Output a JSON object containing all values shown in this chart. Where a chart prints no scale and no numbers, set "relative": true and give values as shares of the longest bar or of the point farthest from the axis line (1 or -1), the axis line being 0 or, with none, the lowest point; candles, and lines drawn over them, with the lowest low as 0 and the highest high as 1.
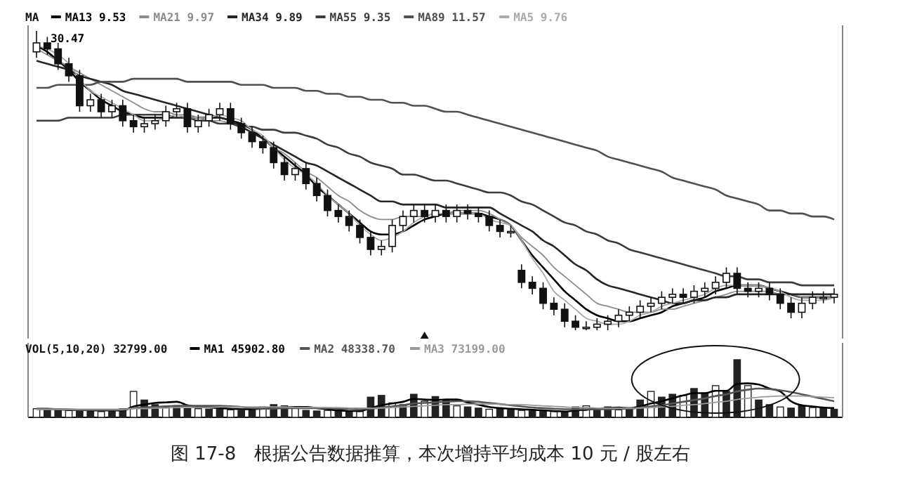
{
  "chart_data": [
    {
      "type": "candlestick",
      "relative": true,
      "legend": "top left",
      "legend_title": "MA",
      "annotations": [
        "30.47"
      ],
      "categories": [
        null,
        null,
        null,
        null,
        null,
        null,
        null,
        null,
        null,
        null,
        null,
        null,
        null,
        null,
        null,
        null,
        null,
        null,
        null,
        null,
        null,
        null,
        null,
        null,
        null,
        null,
        null,
        null,
        null,
        null,
        null,
        null,
        null,
        null,
        null,
        null,
        null,
        null,
        null,
        null,
        null,
        null,
        null,
        null,
        null,
        null,
        null,
        null,
        null,
        null,
        null,
        null,
        null,
        null,
        null,
        null,
        null,
        null,
        null,
        null,
        null,
        null,
        null,
        null,
        null,
        null,
        null,
        null,
        null,
        null,
        null,
        null,
        null,
        null,
        null
      ],
      "color": "#111111",
      "ohlc": [
        [
          0.93,
          1.0,
          0.91,
          0.96
        ],
        [
          0.96,
          0.98,
          0.92,
          0.94
        ],
        [
          0.94,
          0.96,
          0.87,
          0.89
        ],
        [
          0.89,
          0.91,
          0.83,
          0.85
        ],
        [
          0.85,
          0.87,
          0.73,
          0.75
        ],
        [
          0.75,
          0.79,
          0.73,
          0.77
        ],
        [
          0.77,
          0.79,
          0.71,
          0.73
        ],
        [
          0.73,
          0.77,
          0.71,
          0.75
        ],
        [
          0.75,
          0.77,
          0.68,
          0.7
        ],
        [
          0.7,
          0.72,
          0.66,
          0.68
        ],
        [
          0.68,
          0.71,
          0.66,
          0.69
        ],
        [
          0.69,
          0.72,
          0.67,
          0.7
        ],
        [
          0.7,
          0.75,
          0.68,
          0.73
        ],
        [
          0.73,
          0.76,
          0.71,
          0.74
        ],
        [
          0.74,
          0.76,
          0.66,
          0.68
        ],
        [
          0.68,
          0.72,
          0.66,
          0.7
        ],
        [
          0.7,
          0.74,
          0.68,
          0.72
        ],
        [
          0.72,
          0.76,
          0.7,
          0.74
        ],
        [
          0.74,
          0.76,
          0.67,
          0.69
        ],
        [
          0.69,
          0.71,
          0.64,
          0.66
        ],
        [
          0.66,
          0.68,
          0.61,
          0.63
        ],
        [
          0.63,
          0.65,
          0.59,
          0.61
        ],
        [
          0.61,
          0.63,
          0.54,
          0.56
        ],
        [
          0.56,
          0.58,
          0.5,
          0.52
        ],
        [
          0.52,
          0.56,
          0.5,
          0.54
        ],
        [
          0.54,
          0.56,
          0.47,
          0.49
        ],
        [
          0.49,
          0.51,
          0.43,
          0.45
        ],
        [
          0.45,
          0.47,
          0.38,
          0.4
        ],
        [
          0.4,
          0.42,
          0.36,
          0.38
        ],
        [
          0.38,
          0.4,
          0.33,
          0.35
        ],
        [
          0.35,
          0.37,
          0.29,
          0.31
        ],
        [
          0.31,
          0.33,
          0.25,
          0.27
        ],
        [
          0.27,
          0.3,
          0.25,
          0.28
        ],
        [
          0.28,
          0.37,
          0.26,
          0.35
        ],
        [
          0.35,
          0.4,
          0.33,
          0.38
        ],
        [
          0.38,
          0.42,
          0.36,
          0.4
        ],
        [
          0.4,
          0.42,
          0.36,
          0.38
        ],
        [
          0.38,
          0.42,
          0.36,
          0.4
        ],
        [
          0.4,
          0.42,
          0.36,
          0.38
        ],
        [
          0.38,
          0.42,
          0.36,
          0.4
        ],
        [
          0.4,
          0.42,
          0.37,
          0.39
        ],
        [
          0.39,
          0.41,
          0.36,
          0.38
        ],
        [
          0.38,
          0.4,
          0.33,
          0.35
        ],
        [
          0.35,
          0.37,
          0.31,
          0.33
        ],
        [
          0.33,
          0.35,
          0.31,
          0.33
        ],
        [
          0.2,
          0.22,
          0.14,
          0.16
        ],
        [
          0.16,
          0.18,
          0.12,
          0.14
        ],
        [
          0.14,
          0.16,
          0.07,
          0.09
        ],
        [
          0.09,
          0.11,
          0.05,
          0.07
        ],
        [
          0.07,
          0.09,
          0.01,
          0.03
        ],
        [
          0.03,
          0.05,
          0.0,
          0.01
        ],
        [
          0.01,
          0.03,
          0.0,
          0.01
        ],
        [
          0.01,
          0.04,
          0.0,
          0.02
        ],
        [
          0.02,
          0.05,
          0.0,
          0.03
        ],
        [
          0.03,
          0.07,
          0.01,
          0.05
        ],
        [
          0.05,
          0.08,
          0.03,
          0.06
        ],
        [
          0.06,
          0.1,
          0.04,
          0.08
        ],
        [
          0.08,
          0.11,
          0.06,
          0.09
        ],
        [
          0.09,
          0.13,
          0.07,
          0.11
        ],
        [
          0.11,
          0.14,
          0.09,
          0.12
        ],
        [
          0.12,
          0.14,
          0.09,
          0.11
        ],
        [
          0.11,
          0.15,
          0.09,
          0.13
        ],
        [
          0.13,
          0.16,
          0.11,
          0.14
        ],
        [
          0.14,
          0.18,
          0.12,
          0.16
        ],
        [
          0.16,
          0.21,
          0.14,
          0.19
        ],
        [
          0.19,
          0.21,
          0.12,
          0.14
        ],
        [
          0.14,
          0.16,
          0.11,
          0.13
        ],
        [
          0.13,
          0.16,
          0.11,
          0.14
        ],
        [
          0.14,
          0.16,
          0.1,
          0.12
        ],
        [
          0.12,
          0.14,
          0.07,
          0.09
        ],
        [
          0.09,
          0.11,
          0.04,
          0.06
        ],
        [
          0.06,
          0.11,
          0.04,
          0.09
        ],
        [
          0.09,
          0.13,
          0.07,
          0.11
        ],
        [
          0.11,
          0.13,
          0.09,
          0.11
        ],
        [
          0.11,
          0.14,
          0.09,
          0.12
        ]
      ],
      "series": [
        {
          "type": "line",
          "name": "MA13 9.53",
          "color": "#000000",
          "values": [
            0.95,
            0.93,
            0.9,
            0.87,
            0.83,
            0.8,
            0.77,
            0.75,
            0.73,
            0.72,
            0.71,
            0.71,
            0.71,
            0.71,
            0.71,
            0.71,
            0.71,
            0.71,
            0.7,
            0.69,
            0.67,
            0.64,
            0.61,
            0.58,
            0.55,
            0.52,
            0.48,
            0.45,
            0.42,
            0.39,
            0.36,
            0.33,
            0.32,
            0.32,
            0.33,
            0.35,
            0.37,
            0.38,
            0.39,
            0.39,
            0.39,
            0.39,
            0.38,
            0.37,
            0.35,
            0.3,
            0.25,
            0.21,
            0.17,
            0.13,
            0.1,
            0.07,
            0.05,
            0.04,
            0.03,
            0.03,
            0.04,
            0.05,
            0.06,
            0.08,
            0.09,
            0.1,
            0.11,
            0.13,
            0.14,
            0.15,
            0.15,
            0.15,
            0.14,
            0.13,
            0.12,
            0.11,
            0.11,
            0.11,
            0.11
          ]
        },
        {
          "type": "line",
          "name": "MA21 9.97",
          "color": "#8c8c8c",
          "values": [
            0.94,
            0.92,
            0.9,
            0.88,
            0.86,
            0.84,
            0.82,
            0.8,
            0.78,
            0.76,
            0.74,
            0.73,
            0.73,
            0.72,
            0.72,
            0.71,
            0.7,
            0.7,
            0.69,
            0.68,
            0.66,
            0.64,
            0.61,
            0.59,
            0.56,
            0.53,
            0.51,
            0.48,
            0.45,
            0.43,
            0.4,
            0.38,
            0.37,
            0.37,
            0.38,
            0.38,
            0.38,
            0.39,
            0.39,
            0.4,
            0.4,
            0.4,
            0.39,
            0.37,
            0.35,
            0.31,
            0.28,
            0.25,
            0.21,
            0.18,
            0.15,
            0.12,
            0.09,
            0.08,
            0.07,
            0.06,
            0.06,
            0.06,
            0.07,
            0.07,
            0.08,
            0.09,
            0.1,
            0.11,
            0.12,
            0.13,
            0.13,
            0.13,
            0.13,
            0.12,
            0.12,
            0.11,
            0.11,
            0.11,
            0.11
          ]
        },
        {
          "type": "line",
          "name": "MA34 9.89",
          "color": "#262626",
          "values": [
            0.9,
            0.89,
            0.88,
            0.87,
            0.85,
            0.84,
            0.83,
            0.82,
            0.8,
            0.79,
            0.78,
            0.77,
            0.76,
            0.75,
            0.74,
            0.73,
            0.72,
            0.71,
            0.7,
            0.68,
            0.66,
            0.64,
            0.62,
            0.6,
            0.58,
            0.56,
            0.55,
            0.53,
            0.51,
            0.49,
            0.47,
            0.45,
            0.43,
            0.43,
            0.42,
            0.42,
            0.42,
            0.42,
            0.41,
            0.41,
            0.41,
            0.41,
            0.41,
            0.39,
            0.37,
            0.35,
            0.33,
            0.3,
            0.28,
            0.25,
            0.22,
            0.2,
            0.17,
            0.15,
            0.14,
            0.13,
            0.12,
            0.11,
            0.1,
            0.09,
            0.09,
            0.1,
            0.1,
            0.11,
            0.11,
            0.12,
            0.12,
            0.12,
            0.12,
            0.12,
            0.12,
            0.12,
            0.12,
            0.12,
            0.12
          ]
        },
        {
          "type": "line",
          "name": "MA55 9.35",
          "color": "#3c3c3c",
          "values": [
            0.7,
            0.7,
            0.7,
            0.71,
            0.71,
            0.71,
            0.71,
            0.71,
            0.72,
            0.72,
            0.72,
            0.72,
            0.72,
            0.71,
            0.71,
            0.7,
            0.7,
            0.69,
            0.69,
            0.68,
            0.68,
            0.67,
            0.67,
            0.66,
            0.66,
            0.65,
            0.64,
            0.62,
            0.61,
            0.59,
            0.58,
            0.56,
            0.55,
            0.54,
            0.52,
            0.52,
            0.51,
            0.5,
            0.5,
            0.49,
            0.48,
            0.47,
            0.46,
            0.46,
            0.45,
            0.43,
            0.42,
            0.4,
            0.38,
            0.36,
            0.35,
            0.33,
            0.32,
            0.3,
            0.29,
            0.27,
            0.26,
            0.25,
            0.24,
            0.23,
            0.22,
            0.21,
            0.2,
            0.19,
            0.18,
            0.18,
            0.17,
            0.17,
            0.16,
            0.16,
            0.16,
            0.15,
            0.15,
            0.15,
            0.15
          ]
        },
        {
          "type": "line",
          "name": "MA89 11.57",
          "color": "#505050",
          "values": [
            0.81,
            0.81,
            0.82,
            0.82,
            0.82,
            0.82,
            0.83,
            0.83,
            0.83,
            0.84,
            0.84,
            0.84,
            0.84,
            0.84,
            0.83,
            0.83,
            0.83,
            0.83,
            0.83,
            0.82,
            0.82,
            0.82,
            0.81,
            0.81,
            0.81,
            0.8,
            0.8,
            0.79,
            0.79,
            0.78,
            0.78,
            0.77,
            0.77,
            0.76,
            0.76,
            0.75,
            0.75,
            0.74,
            0.73,
            0.73,
            0.72,
            0.71,
            0.7,
            0.69,
            0.68,
            0.67,
            0.66,
            0.65,
            0.64,
            0.63,
            0.62,
            0.61,
            0.6,
            0.58,
            0.57,
            0.56,
            0.55,
            0.54,
            0.53,
            0.51,
            0.5,
            0.49,
            0.48,
            0.47,
            0.45,
            0.44,
            0.43,
            0.42,
            0.4,
            0.4,
            0.39,
            0.39,
            0.38,
            0.38,
            0.37
          ]
        },
        {
          "type": "line",
          "name": "MA5 9.76",
          "color": "#aaaaaa",
          "values": [
            0.95,
            0.94,
            0.92,
            0.89,
            0.84,
            0.8,
            0.78,
            0.76,
            0.74,
            0.72,
            0.7,
            0.7,
            0.71,
            0.72,
            0.71,
            0.71,
            0.71,
            0.72,
            0.71,
            0.7,
            0.67,
            0.65,
            0.61,
            0.57,
            0.54,
            0.52,
            0.49,
            0.45,
            0.42,
            0.39,
            0.35,
            0.32,
            0.3,
            0.31,
            0.33,
            0.36,
            0.38,
            0.39,
            0.39,
            0.39,
            0.39,
            0.39,
            0.37,
            0.36,
            0.35,
            0.3,
            0.24,
            0.19,
            0.13,
            0.1,
            0.07,
            0.04,
            0.03,
            0.02,
            0.02,
            0.03,
            0.05,
            0.06,
            0.08,
            0.09,
            0.1,
            0.11,
            0.12,
            0.14,
            0.15,
            0.15,
            0.15,
            0.15,
            0.14,
            0.13,
            0.11,
            0.1,
            0.1,
            0.1,
            0.11
          ]
        }
      ]
    },
    {
      "type": "bar",
      "relative": true,
      "legend": "top left",
      "legend_title": "VOL(5,10,20) 32799.00",
      "annotations": [
        "图 17-8　根据公告数据推算，本次增持平均成本 10 元 / 股左右"
      ],
      "categories": [
        null,
        null,
        null,
        null,
        null,
        null,
        null,
        null,
        null,
        null,
        null,
        null,
        null,
        null,
        null,
        null,
        null,
        null,
        null,
        null,
        null,
        null,
        null,
        null,
        null,
        null,
        null,
        null,
        null,
        null,
        null,
        null,
        null,
        null,
        null,
        null,
        null,
        null,
        null,
        null,
        null,
        null,
        null,
        null,
        null,
        null,
        null,
        null,
        null,
        null,
        null,
        null,
        null,
        null,
        null,
        null,
        null,
        null,
        null,
        null,
        null,
        null,
        null,
        null,
        null,
        null,
        null,
        null,
        null,
        null,
        null,
        null,
        null,
        null,
        null
      ],
      "series": [
        {
          "type": "bar",
          "color": "#222222",
          "values": [
            0.15,
            0.14,
            0.13,
            0.12,
            0.12,
            0.11,
            0.1,
            0.12,
            0.15,
            0.45,
            0.3,
            0.22,
            0.18,
            0.2,
            0.16,
            0.15,
            0.14,
            0.17,
            0.13,
            0.12,
            0.14,
            0.18,
            0.22,
            0.2,
            0.16,
            0.12,
            0.11,
            0.12,
            0.1,
            0.11,
            0.1,
            0.35,
            0.38,
            0.25,
            0.22,
            0.4,
            0.28,
            0.36,
            0.3,
            0.2,
            0.18,
            0.16,
            0.14,
            0.15,
            0.13,
            0.12,
            0.11,
            0.1,
            0.1,
            0.09,
            0.18,
            0.2,
            0.16,
            0.18,
            0.13,
            0.15,
            0.3,
            0.45,
            0.35,
            0.4,
            0.38,
            0.5,
            0.42,
            0.55,
            0.45,
            1.0,
            0.55,
            0.3,
            0.22,
            0.18,
            0.16,
            0.2,
            0.17,
            0.15,
            0.14
          ]
        },
        {
          "type": "line",
          "name": "MA1 45902.80",
          "color": "#000000",
          "values": [
            0.15,
            0.15,
            0.14,
            0.13,
            0.13,
            0.12,
            0.12,
            0.12,
            0.12,
            0.19,
            0.22,
            0.25,
            0.26,
            0.27,
            0.21,
            0.18,
            0.17,
            0.16,
            0.15,
            0.14,
            0.14,
            0.15,
            0.16,
            0.17,
            0.18,
            0.18,
            0.16,
            0.14,
            0.12,
            0.11,
            0.11,
            0.16,
            0.21,
            0.24,
            0.27,
            0.32,
            0.31,
            0.3,
            0.31,
            0.31,
            0.26,
            0.22,
            0.18,
            0.16,
            0.15,
            0.14,
            0.13,
            0.12,
            0.11,
            0.1,
            0.12,
            0.13,
            0.15,
            0.16,
            0.17,
            0.16,
            0.19,
            0.24,
            0.28,
            0.33,
            0.38,
            0.42,
            0.42,
            0.46,
            0.46,
            0.58,
            0.59,
            0.57,
            0.5,
            0.45,
            0.28,
            0.21,
            0.19,
            0.17,
            0.16
          ]
        },
        {
          "type": "line",
          "name": "MA2 48338.70",
          "color": "#555555",
          "values": [
            0.14,
            0.14,
            0.14,
            0.14,
            0.13,
            0.13,
            0.13,
            0.13,
            0.13,
            0.16,
            0.17,
            0.18,
            0.19,
            0.2,
            0.2,
            0.2,
            0.2,
            0.2,
            0.19,
            0.18,
            0.16,
            0.15,
            0.15,
            0.16,
            0.16,
            0.16,
            0.16,
            0.16,
            0.15,
            0.15,
            0.14,
            0.15,
            0.17,
            0.19,
            0.21,
            0.24,
            0.25,
            0.26,
            0.27,
            0.28,
            0.28,
            0.27,
            0.25,
            0.23,
            0.21,
            0.19,
            0.17,
            0.16,
            0.15,
            0.14,
            0.14,
            0.14,
            0.14,
            0.14,
            0.15,
            0.15,
            0.17,
            0.19,
            0.21,
            0.24,
            0.27,
            0.3,
            0.33,
            0.37,
            0.4,
            0.45,
            0.48,
            0.5,
            0.49,
            0.47,
            0.44,
            0.4,
            0.36,
            0.32,
            0.28
          ]
        },
        {
          "type": "line",
          "name": "MA3 73199.00",
          "color": "#9a9a9a",
          "values": [
            0.14,
            0.14,
            0.14,
            0.14,
            0.14,
            0.14,
            0.14,
            0.14,
            0.14,
            0.15,
            0.15,
            0.16,
            0.16,
            0.17,
            0.17,
            0.17,
            0.17,
            0.18,
            0.18,
            0.18,
            0.18,
            0.18,
            0.18,
            0.18,
            0.17,
            0.17,
            0.17,
            0.17,
            0.17,
            0.16,
            0.16,
            0.16,
            0.16,
            0.17,
            0.18,
            0.19,
            0.2,
            0.21,
            0.22,
            0.22,
            0.23,
            0.23,
            0.23,
            0.23,
            0.22,
            0.22,
            0.21,
            0.2,
            0.19,
            0.18,
            0.17,
            0.17,
            0.16,
            0.16,
            0.16,
            0.16,
            0.16,
            0.17,
            0.18,
            0.19,
            0.21,
            0.22,
            0.24,
            0.26,
            0.28,
            0.31,
            0.33,
            0.35,
            0.36,
            0.37,
            0.37,
            0.37,
            0.36,
            0.35,
            0.34
          ]
        }
      ]
    }
  ]
}
